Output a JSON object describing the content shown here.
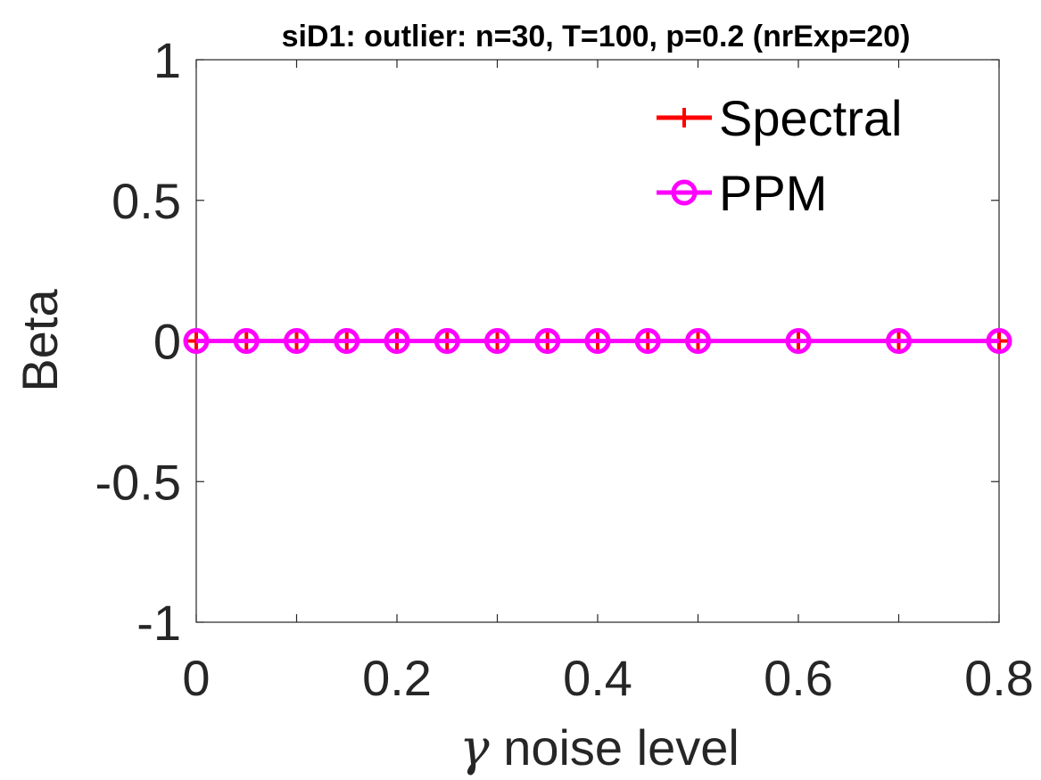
{
  "chart_data": {
    "type": "line",
    "title": "siD1: outlier: n=30, T=100, p=0.2 (nrExp=20)",
    "xlabel_symbol": "γ",
    "xlabel_text": "noise level",
    "ylabel": "Beta",
    "xlim": [
      0,
      0.8
    ],
    "ylim": [
      -1,
      1
    ],
    "x_ticks": [
      0,
      0.2,
      0.4,
      0.6,
      0.8
    ],
    "x_tick_labels": [
      "0",
      "0.2",
      "0.4",
      "0.6",
      "0.8"
    ],
    "y_ticks": [
      -1,
      -0.5,
      0,
      0.5,
      1
    ],
    "y_tick_labels": [
      "-1",
      "-0.5",
      "0",
      "0.5",
      "1"
    ],
    "x_minor_ticks": [
      0.1,
      0.3,
      0.5,
      0.7
    ],
    "grid": false,
    "legend_position": "top-right",
    "x": [
      0,
      0.05,
      0.1,
      0.15,
      0.2,
      0.25,
      0.3,
      0.35,
      0.4,
      0.45,
      0.5,
      0.6,
      0.7,
      0.8
    ],
    "series": [
      {
        "name": "Spectral",
        "marker": "plus",
        "color": "#ff0000",
        "values": [
          0,
          0,
          0,
          0,
          0,
          0,
          0,
          0,
          0,
          0,
          0,
          0,
          0,
          0
        ]
      },
      {
        "name": "PPM",
        "marker": "circle",
        "color": "#ff00ff",
        "values": [
          0,
          0,
          0,
          0,
          0,
          0,
          0,
          0,
          0,
          0,
          0,
          0,
          0,
          0
        ]
      }
    ]
  }
}
